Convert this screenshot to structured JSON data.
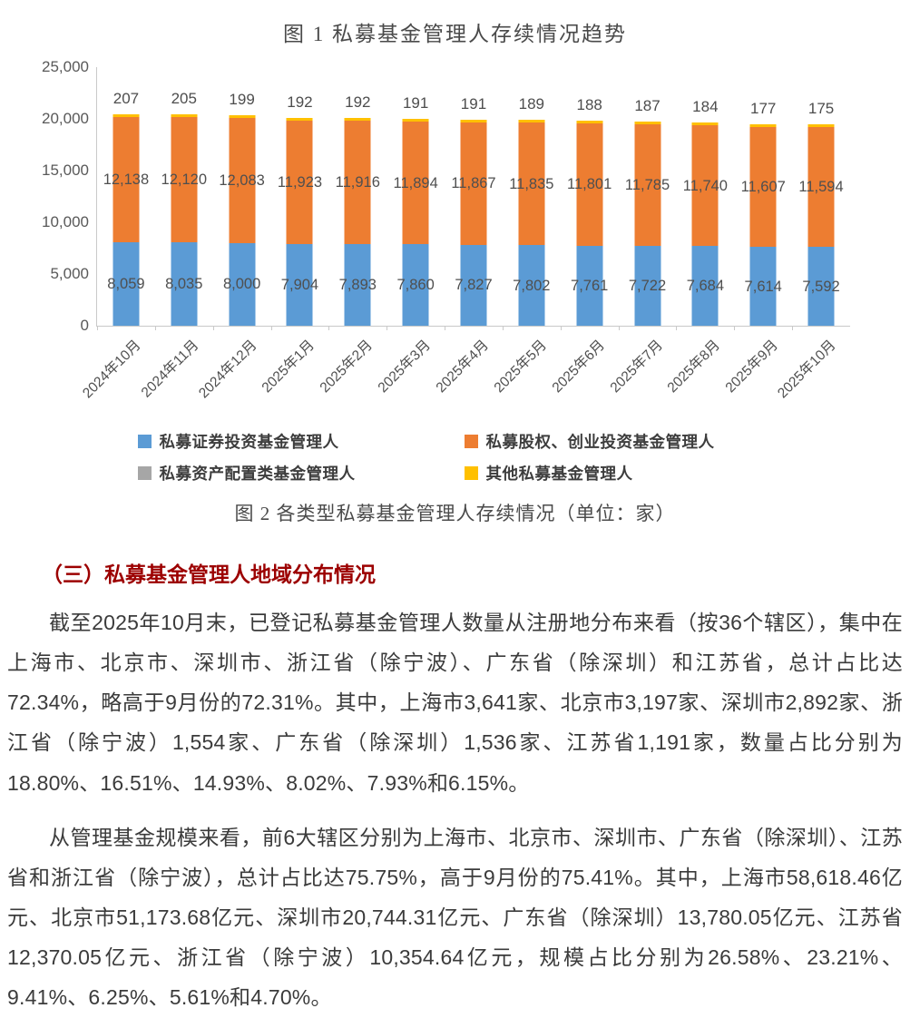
{
  "figure1": {
    "title": "图 1  私募基金管理人存续情况趋势"
  },
  "chart_data": {
    "type": "bar",
    "stacked": true,
    "title": "图 1 私募基金管理人存续情况趋势",
    "categories": [
      "2024年10月",
      "2024年11月",
      "2024年12月",
      "2025年1月",
      "2025年2月",
      "2025年3月",
      "2025年4月",
      "2025年5月",
      "2025年6月",
      "2025年7月",
      "2025年8月",
      "2025年9月",
      "2025年10月"
    ],
    "series": [
      {
        "name": "私募证券投资基金管理人",
        "color": "#5b9bd5",
        "values": [
          8059,
          8035,
          8000,
          7904,
          7893,
          7860,
          7827,
          7802,
          7761,
          7722,
          7684,
          7614,
          7592
        ]
      },
      {
        "name": "私募股权、创业投资基金管理人",
        "color": "#ed7d31",
        "values": [
          12138,
          12120,
          12083,
          11923,
          11916,
          11894,
          11867,
          11835,
          11801,
          11785,
          11740,
          11607,
          11594
        ]
      },
      {
        "name": "私募资产配置类基金管理人",
        "color": "#a6a6a6",
        "values": []
      },
      {
        "name": "其他私募基金管理人",
        "color": "#ffc000",
        "values": [
          207,
          205,
          199,
          192,
          192,
          191,
          191,
          189,
          188,
          187,
          184,
          177,
          175
        ]
      }
    ],
    "ylim": [
      0,
      25000
    ],
    "yticks": [
      0,
      5000,
      10000,
      15000,
      20000,
      25000
    ],
    "grid": false,
    "legend_position": "bottom",
    "xlabel": "",
    "ylabel": ""
  },
  "figure2": {
    "caption": "图 2 各类型私募基金管理人存续情况（单位：家）"
  },
  "section": {
    "heading": "（三）私募基金管理人地域分布情况",
    "heading_color": "#9c0000",
    "paragraph1": "截至2025年10月末，已登记私募基金管理人数量从注册地分布来看（按36个辖区），集中在上海市、北京市、深圳市、浙江省（除宁波）、广东省（除深圳）和江苏省，总计占比达72.34%，略高于9月份的72.31%。其中，上海市3,641家、北京市3,197家、深圳市2,892家、浙江省（除宁波）1,554家、广东省（除深圳）1,536家、江苏省1,191家，数量占比分别为18.80%、16.51%、14.93%、8.02%、7.93%和6.15%。",
    "paragraph2": "从管理基金规模来看，前6大辖区分别为上海市、北京市、深圳市、广东省（除深圳）、江苏省和浙江省（除宁波），总计占比达75.75%，高于9月份的75.41%。其中，上海市58,618.46亿元、北京市51,173.68亿元、深圳市20,744.31亿元、广东省（除深圳）13,780.05亿元、江苏省12,370.05亿元、浙江省（除宁波）10,354.64亿元，规模占比分别为26.58%、23.21%、9.41%、6.25%、5.61%和4.70%。"
  },
  "colors": {
    "securities_blue": "#5b9bd5",
    "equity_orange": "#ed7d31",
    "asset_alloc_gray": "#a6a6a6",
    "other_yellow": "#ffc000",
    "axis_gray": "#c9c9c9",
    "heading_red": "#9c0000"
  }
}
